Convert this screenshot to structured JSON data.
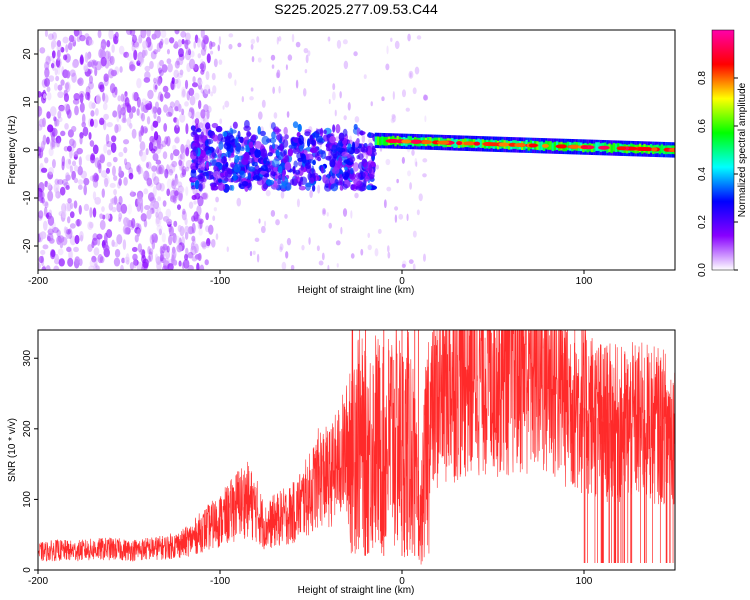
{
  "title": "S225.2025.277.09.53.C44",
  "chart_data": [
    {
      "type": "heatmap",
      "title": "S225.2025.277.09.53.C44",
      "xlabel": "Height of straight line (km)",
      "ylabel": "Frequency (Hz)",
      "xlim": [
        -200,
        150
      ],
      "ylim": [
        -25,
        25
      ],
      "xticks": [
        -200,
        -100,
        0,
        100
      ],
      "yticks": [
        -20,
        -10,
        0,
        10,
        20
      ],
      "colorbar": {
        "label": "Normalized spectral amplitude",
        "range": [
          0,
          1
        ],
        "ticks": [
          0.0,
          0.2,
          0.4,
          0.6,
          0.8
        ],
        "colors": [
          "#ffffff",
          "#8800ff",
          "#0000ff",
          "#00ffff",
          "#00ff00",
          "#ffff00",
          "#ff0000",
          "#ff00aa"
        ]
      },
      "regions": [
        {
          "name": "scattered noise",
          "x": [
            -200,
            -115
          ],
          "freq": [
            -25,
            25
          ],
          "amplitude": 0.08
        },
        {
          "name": "turbulent band",
          "x": [
            -115,
            -15
          ],
          "freq": [
            -8,
            6
          ],
          "amplitude": 0.2
        },
        {
          "name": "signal band",
          "x": [
            -15,
            150
          ],
          "freq_start": 2,
          "freq_end": 0,
          "amplitude": 0.85
        }
      ]
    },
    {
      "type": "line",
      "xlabel": "Height of straight line (km)",
      "ylabel": "SNR (10 * v/v)",
      "xlim": [
        -200,
        150
      ],
      "ylim": [
        0,
        340
      ],
      "xticks": [
        -200,
        -100,
        0,
        100
      ],
      "yticks": [
        0,
        100,
        200,
        300
      ],
      "series": [
        {
          "name": "SNR",
          "color": "#ff2a2a",
          "x": [
            -200,
            -190,
            -180,
            -170,
            -160,
            -150,
            -140,
            -130,
            -120,
            -115,
            -110,
            -100,
            -95,
            -90,
            -85,
            -80,
            -75,
            -70,
            -65,
            -60,
            -55,
            -50,
            -45,
            -40,
            -35,
            -30,
            -25,
            -20,
            -15,
            -10,
            -5,
            0,
            5,
            10,
            15,
            20,
            25,
            30,
            35,
            40,
            50,
            60,
            70,
            80,
            90,
            100,
            110,
            120,
            130,
            140,
            150
          ],
          "values": [
            25,
            28,
            27,
            29,
            30,
            28,
            30,
            32,
            38,
            45,
            55,
            70,
            80,
            95,
            100,
            85,
            60,
            70,
            75,
            80,
            95,
            110,
            135,
            130,
            150,
            175,
            200,
            160,
            185,
            165,
            195,
            175,
            180,
            60,
            215,
            245,
            265,
            275,
            280,
            285,
            290,
            288,
            290,
            275,
            250,
            230,
            210,
            205,
            210,
            205,
            200
          ]
        }
      ],
      "spikes": [
        -20,
        -10,
        0,
        3,
        7,
        9
      ]
    }
  ]
}
